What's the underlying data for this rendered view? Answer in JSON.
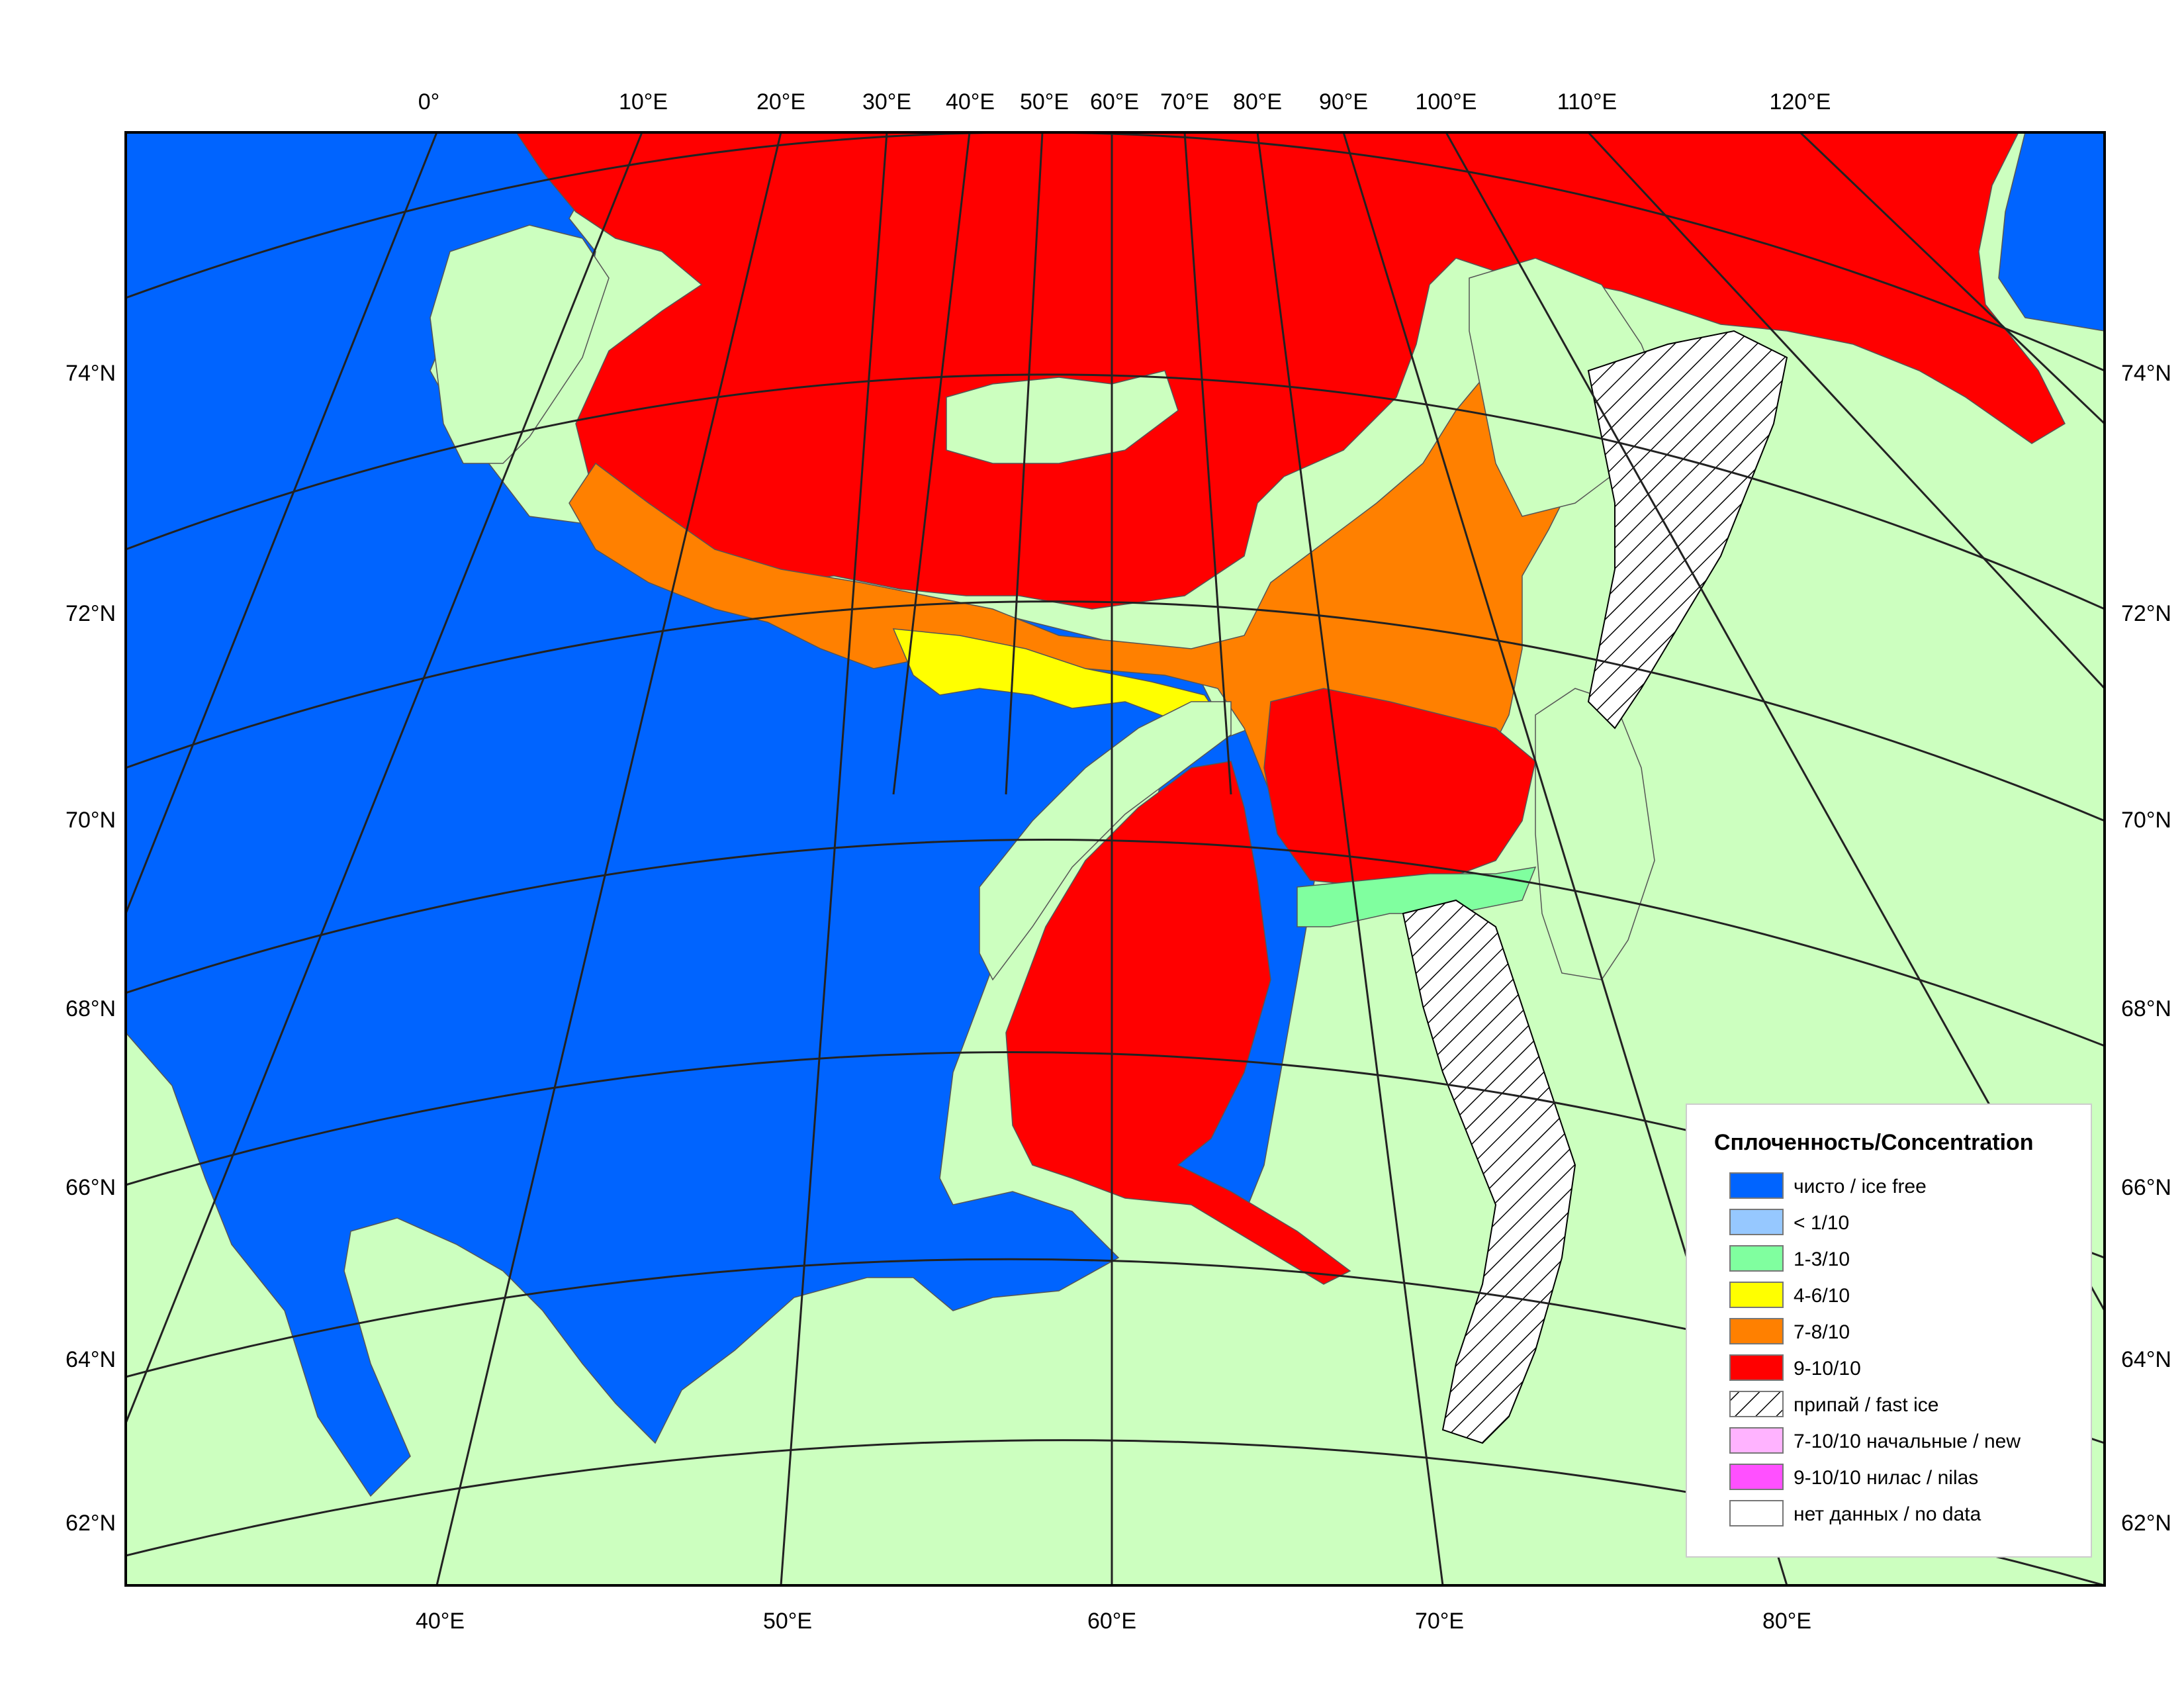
{
  "colors": {
    "land": "#ccffbf",
    "ice_free": "#0064ff",
    "lt_1_10": "#96c8ff",
    "c_1_3": "#80ff9f",
    "c_4_6": "#ffff00",
    "c_7_8": "#ff8000",
    "c_9_10": "#ff0000",
    "new_ice": "#ffb3ff",
    "nilas": "#ff50ff",
    "no_data": "#ffffff"
  },
  "top_lon_labels": [
    "0°",
    "10°E",
    "20°E",
    "30°E",
    "40°E",
    "50°E",
    "60°E",
    "70°E",
    "80°E",
    "90°E",
    "100°E",
    "110°E",
    "120°E"
  ],
  "bottom_lon_labels": [
    "40°E",
    "50°E",
    "60°E",
    "70°E",
    "80°E"
  ],
  "lat_labels": [
    "74°N",
    "72°N",
    "70°N",
    "68°N",
    "66°N",
    "64°N",
    "62°N"
  ],
  "legend": {
    "title": "Сплоченность/Concentration",
    "items": [
      {
        "label": "чисто / ice free",
        "color": "#0064ff",
        "pattern": false
      },
      {
        "label": "< 1/10",
        "color": "#96c8ff",
        "pattern": false
      },
      {
        "label": "1-3/10",
        "color": "#80ff9f",
        "pattern": false
      },
      {
        "label": "4-6/10",
        "color": "#ffff00",
        "pattern": false
      },
      {
        "label": "7-8/10",
        "color": "#ff8000",
        "pattern": false
      },
      {
        "label": "9-10/10",
        "color": "#ff0000",
        "pattern": false
      },
      {
        "label": "припай / fast ice",
        "color": "#ffffff",
        "pattern": true
      },
      {
        "label": "7-10/10 начальные / new",
        "color": "#ffb3ff",
        "pattern": false
      },
      {
        "label": "9-10/10 нилас / nilas",
        "color": "#ff50ff",
        "pattern": false
      },
      {
        "label": "нет данных / no data",
        "color": "#ffffff",
        "pattern": false
      }
    ]
  }
}
